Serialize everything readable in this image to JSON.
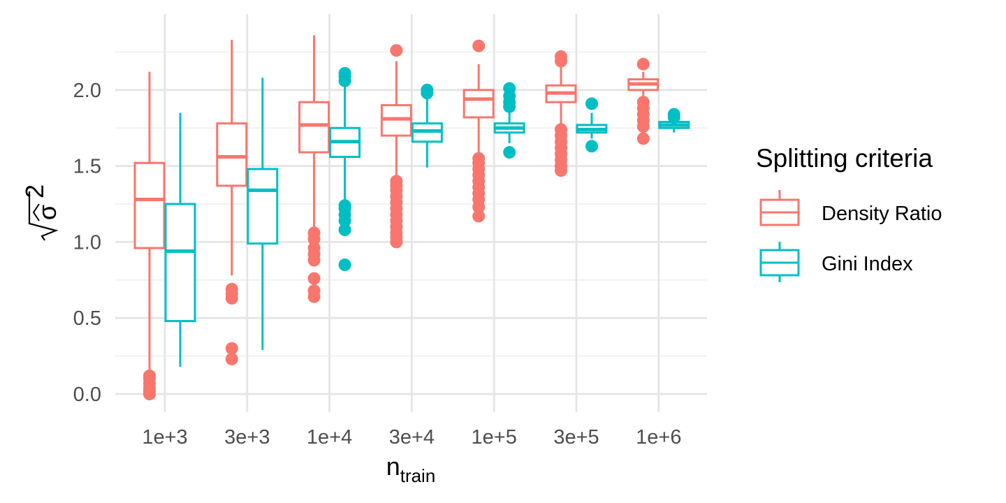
{
  "chart_data": {
    "type": "box",
    "xlabel": {
      "main": "n",
      "subscript": "train"
    },
    "ylabel": "sqrt(sigma-hat^2)",
    "ylabel_symbol": "σ",
    "ylabel_exponent": "2",
    "categories": [
      "1e+3",
      "3e+3",
      "1e+4",
      "3e+4",
      "1e+5",
      "3e+5",
      "1e+6"
    ],
    "ylim": [
      -0.06,
      2.5
    ],
    "yticks": [
      0.0,
      0.5,
      1.0,
      1.5,
      2.0
    ],
    "ytick_labels": [
      "0.0",
      "0.5",
      "1.0",
      "1.5",
      "2.0"
    ],
    "grid": true,
    "legend": {
      "title": "Splitting criteria",
      "position": "right"
    },
    "series": [
      {
        "name": "Density Ratio",
        "color": "#F8766D",
        "boxes": [
          {
            "min": 0.13,
            "q1": 0.96,
            "median": 1.28,
            "q3": 1.52,
            "max": 2.12,
            "outliers": [
              0.0,
              0.02,
              0.04,
              0.07,
              0.1,
              0.12
            ]
          },
          {
            "min": 0.78,
            "q1": 1.37,
            "median": 1.56,
            "q3": 1.78,
            "max": 2.33,
            "outliers": [
              0.23,
              0.3,
              0.63,
              0.66,
              0.69
            ]
          },
          {
            "min": 1.1,
            "q1": 1.59,
            "median": 1.77,
            "q3": 1.92,
            "max": 2.36,
            "outliers": [
              0.64,
              0.68,
              0.76,
              0.88,
              0.92,
              0.96,
              1.02,
              1.06
            ]
          },
          {
            "min": 1.42,
            "q1": 1.7,
            "median": 1.81,
            "q3": 1.9,
            "max": 2.19,
            "outliers": [
              2.26,
              1.0,
              1.03,
              1.06,
              1.1,
              1.14,
              1.18,
              1.22,
              1.26,
              1.3,
              1.34,
              1.37,
              1.4
            ]
          },
          {
            "min": 1.57,
            "q1": 1.82,
            "median": 1.94,
            "q3": 2.0,
            "max": 2.17,
            "outliers": [
              2.29,
              1.17,
              1.23,
              1.28,
              1.32,
              1.36,
              1.4,
              1.44,
              1.48,
              1.52,
              1.55
            ]
          },
          {
            "min": 1.76,
            "q1": 1.92,
            "median": 1.98,
            "q3": 2.03,
            "max": 2.15,
            "outliers": [
              2.19,
              2.22,
              1.47,
              1.5,
              1.54,
              1.58,
              1.62,
              1.66,
              1.7,
              1.74
            ]
          },
          {
            "min": 1.95,
            "q1": 2.0,
            "median": 2.04,
            "q3": 2.07,
            "max": 2.12,
            "outliers": [
              2.17,
              1.68,
              1.76,
              1.8,
              1.84,
              1.88,
              1.92
            ]
          }
        ]
      },
      {
        "name": "Gini Index",
        "color": "#00BFC4",
        "boxes": [
          {
            "min": 0.18,
            "q1": 0.48,
            "median": 0.94,
            "q3": 1.25,
            "max": 1.85,
            "outliers": []
          },
          {
            "min": 0.29,
            "q1": 0.99,
            "median": 1.34,
            "q3": 1.48,
            "max": 2.08,
            "outliers": []
          },
          {
            "min": 1.26,
            "q1": 1.56,
            "median": 1.66,
            "q3": 1.75,
            "max": 2.05,
            "outliers": [
              0.85,
              1.08,
              1.14,
              1.18,
              1.22,
              1.24,
              2.06,
              2.09,
              2.11
            ]
          },
          {
            "min": 1.49,
            "q1": 1.66,
            "median": 1.73,
            "q3": 1.78,
            "max": 1.95,
            "outliers": [
              1.98,
              2.0
            ]
          },
          {
            "min": 1.65,
            "q1": 1.72,
            "median": 1.75,
            "q3": 1.78,
            "max": 1.85,
            "outliers": [
              1.59,
              1.89,
              1.92,
              1.96,
              2.01
            ]
          },
          {
            "min": 1.68,
            "q1": 1.72,
            "median": 1.74,
            "q3": 1.77,
            "max": 1.85,
            "outliers": [
              1.63,
              1.91
            ]
          },
          {
            "min": 1.72,
            "q1": 1.75,
            "median": 1.77,
            "q3": 1.79,
            "max": 1.8,
            "outliers": [
              1.82,
              1.84
            ]
          }
        ]
      }
    ]
  }
}
